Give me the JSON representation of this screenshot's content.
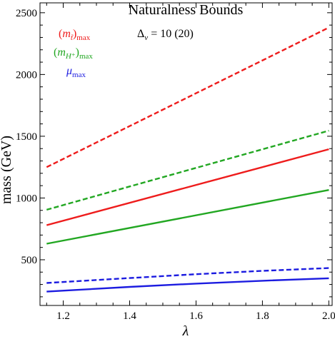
{
  "chart_data": {
    "type": "line",
    "title": "Naturalness Bounds",
    "xlabel": "λ",
    "ylabel": "mass (GeV)",
    "xlim": [
      1.13,
      2.01
    ],
    "ylim": [
      130,
      2580
    ],
    "grid": false,
    "x_ticks": [
      1.2,
      1.4,
      1.6,
      1.8,
      2.0
    ],
    "x_tick_labels": [
      "1.2",
      "1.4",
      "1.6",
      "1.8",
      "2.0"
    ],
    "y_ticks": [
      500,
      1000,
      1500,
      2000,
      2500
    ],
    "y_tick_labels": [
      "500",
      "1000",
      "1500",
      "2000",
      "2500"
    ],
    "annotation": {
      "symbol": "Δ",
      "sub": "v",
      "text": " = 10 (20)"
    },
    "legend": [
      {
        "base": "(m",
        "sub1": "t̃",
        "close": ")",
        "sub2": "max",
        "color": "#ee1c1c"
      },
      {
        "base": "(m",
        "sub1": "H⁺",
        "close": ")",
        "sub2": "max",
        "color": "#22a722"
      },
      {
        "base": "μ",
        "sub1": "",
        "close": "",
        "sub2": "max",
        "color": "#1c1ce0"
      }
    ],
    "series": [
      {
        "color": "#ee1c1c",
        "dash": true,
        "x": [
          1.15,
          2.0
        ],
        "y": [
          1250,
          2380
        ]
      },
      {
        "color": "#22a722",
        "dash": true,
        "x": [
          1.15,
          2.0
        ],
        "y": [
          905,
          1545
        ]
      },
      {
        "color": "#ee1c1c",
        "dash": false,
        "x": [
          1.15,
          2.0
        ],
        "y": [
          780,
          1395
        ]
      },
      {
        "color": "#22a722",
        "dash": false,
        "x": [
          1.15,
          2.0
        ],
        "y": [
          630,
          1065
        ]
      },
      {
        "color": "#1c1ce0",
        "dash": true,
        "x": [
          1.15,
          1.4,
          1.6,
          1.8,
          2.0
        ],
        "y": [
          312,
          352,
          383,
          410,
          433
        ]
      },
      {
        "color": "#1c1ce0",
        "dash": false,
        "x": [
          1.15,
          1.4,
          1.6,
          1.8,
          2.0
        ],
        "y": [
          242,
          280,
          307,
          330,
          350
        ]
      }
    ]
  }
}
